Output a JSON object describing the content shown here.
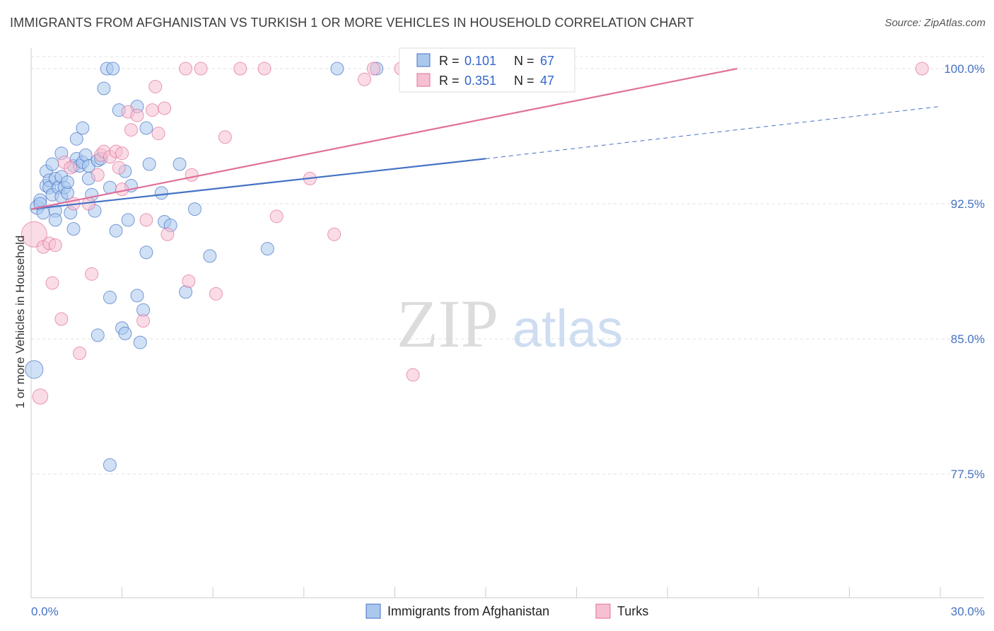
{
  "title": "IMMIGRANTS FROM AFGHANISTAN VS TURKISH 1 OR MORE VEHICLES IN HOUSEHOLD CORRELATION CHART",
  "source": "Source: ZipAtlas.com",
  "watermark": {
    "zip": "ZIP",
    "atlas": "atlas"
  },
  "colors": {
    "blue": "#4472c4",
    "pink": "#e0709a",
    "blue_fill": "#aac8ee",
    "pink_fill": "#f6bfd2"
  },
  "legend_top": [
    {
      "r_label": "R =",
      "r_value": "0.101",
      "n_label": "N =",
      "n_value": "67"
    },
    {
      "r_label": "R =",
      "r_value": "0.351",
      "n_label": "N =",
      "n_value": "47"
    }
  ],
  "chart_data": {
    "type": "scatter",
    "title": "IMMIGRANTS FROM AFGHANISTAN VS TURKISH 1 OR MORE VEHICLES IN HOUSEHOLD CORRELATION CHART",
    "xlabel": "",
    "ylabel": "1 or more Vehicles in Household",
    "xlim": [
      0,
      30
    ],
    "ylim": [
      70,
      101.5
    ],
    "x_tick_labels": [
      "0.0%",
      "30.0%"
    ],
    "y_ticks": [
      77.5,
      85.0,
      92.5,
      100.0
    ],
    "y_tick_labels": [
      "77.5%",
      "85.0%",
      "92.5%",
      "100.0%"
    ],
    "legend": [
      "Immigrants from Afghanistan",
      "Turks"
    ],
    "series": [
      {
        "name": "Immigrants from Afghanistan",
        "color": "#4472c4",
        "trend": {
          "x0": 0,
          "y0": 92.2,
          "x1": 15,
          "y1": 95.0,
          "dash_to_x": 30,
          "dash_to_y": 97.9
        },
        "points": [
          [
            0.1,
            83.3,
            1.4
          ],
          [
            0.2,
            92.3,
            1.1
          ],
          [
            0.3,
            92.7,
            1.0
          ],
          [
            0.3,
            92.5,
            1.0
          ],
          [
            0.4,
            92.0,
            1.0
          ],
          [
            0.5,
            93.5,
            1.0
          ],
          [
            0.5,
            94.3,
            1.0
          ],
          [
            0.6,
            93.8,
            1.0
          ],
          [
            0.6,
            93.4,
            1.0
          ],
          [
            0.7,
            93.0,
            1.0
          ],
          [
            0.8,
            92.1,
            1.0
          ],
          [
            0.8,
            91.6,
            1.0
          ],
          [
            0.8,
            93.9,
            1.0
          ],
          [
            0.9,
            93.4,
            1.0
          ],
          [
            1.0,
            94.0,
            1.0
          ],
          [
            1.0,
            92.9,
            1.0
          ],
          [
            1.1,
            93.4,
            1.0
          ],
          [
            1.2,
            93.1,
            1.0
          ],
          [
            1.2,
            93.7,
            1.0
          ],
          [
            1.4,
            94.6,
            1.0
          ],
          [
            1.4,
            91.1,
            1.0
          ],
          [
            1.5,
            96.1,
            1.0
          ],
          [
            1.5,
            95.0,
            1.0
          ],
          [
            1.6,
            94.6,
            1.0
          ],
          [
            1.7,
            94.8,
            1.0
          ],
          [
            1.7,
            96.7,
            1.0
          ],
          [
            1.8,
            95.2,
            1.0
          ],
          [
            1.9,
            94.6,
            1.0
          ],
          [
            1.9,
            93.9,
            1.0
          ],
          [
            2.1,
            92.1,
            1.0
          ],
          [
            2.2,
            94.9,
            1.0
          ],
          [
            2.2,
            85.2,
            1.0
          ],
          [
            2.3,
            95.0,
            1.0
          ],
          [
            2.4,
            98.9,
            1.0
          ],
          [
            2.5,
            100.0,
            1.0
          ],
          [
            2.6,
            93.4,
            1.0
          ],
          [
            2.6,
            87.3,
            1.0
          ],
          [
            2.7,
            100.0,
            1.0
          ],
          [
            2.8,
            91.0,
            1.0
          ],
          [
            2.9,
            97.7,
            1.0
          ],
          [
            3.0,
            85.6,
            1.0
          ],
          [
            3.1,
            85.3,
            1.0
          ],
          [
            3.1,
            94.3,
            1.0
          ],
          [
            3.2,
            91.6,
            1.0
          ],
          [
            3.3,
            93.5,
            1.0
          ],
          [
            3.5,
            87.4,
            1.0
          ],
          [
            3.5,
            97.9,
            1.0
          ],
          [
            3.6,
            84.8,
            1.0
          ],
          [
            3.7,
            86.6,
            1.0
          ],
          [
            3.8,
            96.7,
            1.0
          ],
          [
            3.8,
            89.8,
            1.0
          ],
          [
            3.9,
            94.7,
            1.0
          ],
          [
            4.3,
            93.1,
            1.0
          ],
          [
            4.4,
            91.5,
            1.0
          ],
          [
            4.6,
            91.3,
            1.0
          ],
          [
            4.9,
            94.7,
            1.0
          ],
          [
            5.1,
            87.6,
            1.0
          ],
          [
            5.4,
            92.2,
            1.0
          ],
          [
            5.9,
            89.6,
            1.0
          ],
          [
            7.8,
            90.0,
            1.0
          ],
          [
            10.1,
            100.0,
            1.0
          ],
          [
            11.4,
            100.0,
            1.0
          ],
          [
            2.6,
            78.0,
            1.0
          ],
          [
            1.0,
            95.3,
            1.0
          ],
          [
            0.7,
            94.7,
            1.0
          ],
          [
            1.3,
            92.0,
            1.0
          ],
          [
            2.0,
            93.0,
            1.0
          ]
        ]
      },
      {
        "name": "Turks",
        "color": "#e0709a",
        "trend": {
          "x0": 0,
          "y0": 92.2,
          "x1": 23.3,
          "y1": 100.0
        },
        "points": [
          [
            0.1,
            90.8,
            2.0
          ],
          [
            0.3,
            81.8,
            1.2
          ],
          [
            0.4,
            90.1,
            1.0
          ],
          [
            0.6,
            90.3,
            1.0
          ],
          [
            0.7,
            88.1,
            1.0
          ],
          [
            0.8,
            90.2,
            1.0
          ],
          [
            1.0,
            86.1,
            1.0
          ],
          [
            1.1,
            94.8,
            1.0
          ],
          [
            1.3,
            94.5,
            1.0
          ],
          [
            1.4,
            92.5,
            1.0
          ],
          [
            1.6,
            84.2,
            1.0
          ],
          [
            1.9,
            92.5,
            1.0
          ],
          [
            2.0,
            88.6,
            1.0
          ],
          [
            2.2,
            94.1,
            1.0
          ],
          [
            2.3,
            95.2,
            1.0
          ],
          [
            2.4,
            95.4,
            1.0
          ],
          [
            2.6,
            95.1,
            1.0
          ],
          [
            2.8,
            95.4,
            1.0
          ],
          [
            2.9,
            94.5,
            1.0
          ],
          [
            3.0,
            93.3,
            1.0
          ],
          [
            3.2,
            97.6,
            1.0
          ],
          [
            3.3,
            96.6,
            1.0
          ],
          [
            3.5,
            97.4,
            1.0
          ],
          [
            3.7,
            86.0,
            1.0
          ],
          [
            3.8,
            91.6,
            1.0
          ],
          [
            4.0,
            97.7,
            1.0
          ],
          [
            4.1,
            99.0,
            1.0
          ],
          [
            4.2,
            96.4,
            1.0
          ],
          [
            4.4,
            97.8,
            1.0
          ],
          [
            4.5,
            90.8,
            1.0
          ],
          [
            5.1,
            100.0,
            1.0
          ],
          [
            5.2,
            88.2,
            1.0
          ],
          [
            5.3,
            94.1,
            1.0
          ],
          [
            5.6,
            100.0,
            1.0
          ],
          [
            6.1,
            87.5,
            1.0
          ],
          [
            6.4,
            96.2,
            1.0
          ],
          [
            6.9,
            100.0,
            1.0
          ],
          [
            7.7,
            100.0,
            1.0
          ],
          [
            8.1,
            91.8,
            1.0
          ],
          [
            9.2,
            93.9,
            1.0
          ],
          [
            10.0,
            90.8,
            1.0
          ],
          [
            11.0,
            99.4,
            1.0
          ],
          [
            11.3,
            100.0,
            1.0
          ],
          [
            12.2,
            100.0,
            1.0
          ],
          [
            12.6,
            83.0,
            1.0
          ],
          [
            29.4,
            100.0,
            1.0
          ],
          [
            3.0,
            95.3,
            1.0
          ]
        ]
      }
    ]
  }
}
